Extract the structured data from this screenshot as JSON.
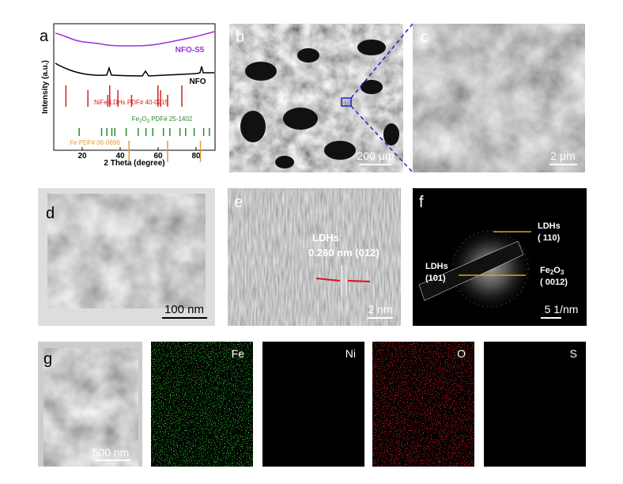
{
  "panels": {
    "a": {
      "label": "a",
      "chart": {
        "type": "line",
        "xlabel": "2 Theta (degree)",
        "ylabel": "Intensity (a.u.)",
        "xlim": [
          5,
          90
        ],
        "xticks": [
          20,
          40,
          60,
          80
        ],
        "series": [
          {
            "name": "NFO-S5",
            "color": "#9b30e0"
          },
          {
            "name": "NFO",
            "color": "#000000"
          }
        ],
        "references": [
          {
            "name": "NiFe-LDHs PDF# 40-0215",
            "color": "#d42020",
            "positions": [
              11.4,
              23,
              33.5,
              34.5,
              38.8,
              46,
              59.9,
              61.3,
              65,
              72.5
            ]
          },
          {
            "name_parts": [
              "Fe",
              "2",
              "O",
              "3",
              " PDF# 25-1402"
            ],
            "color": "#2a8a2a",
            "positions": [
              18.4,
              30.2,
              33,
              35.6,
              37.2,
              43.2,
              49.5,
              53.6,
              57.2,
              62.8,
              66.2,
              71.5,
              74.5,
              79,
              84,
              87
            ]
          },
          {
            "name": "Fe PDF# 06-0696",
            "color": "#e09a40",
            "positions": [
              44.7,
              65,
              82.3
            ]
          }
        ]
      }
    },
    "b": {
      "label": "b",
      "scale": "200 μm"
    },
    "c": {
      "label": "c",
      "scale": "2 μm"
    },
    "d": {
      "label": "d",
      "scale": "100 nm"
    },
    "e": {
      "label": "e",
      "phase": "LDHs",
      "spacing": "0.260 nm (012)",
      "scale": "2 nm"
    },
    "f": {
      "label": "f",
      "ring1": {
        "phase": "LDHs",
        "plane": "( 110)"
      },
      "ring2": {
        "phase": "LDHs",
        "plane": "(101)"
      },
      "ring3": {
        "phase_parts": [
          "Fe",
          "2",
          "O",
          "3"
        ],
        "plane": "( 0012)"
      },
      "scale": "5 1/nm"
    },
    "g": {
      "label": "g",
      "scale": "500 nm",
      "maps": [
        "Fe",
        "Ni",
        "O",
        "S"
      ]
    }
  }
}
